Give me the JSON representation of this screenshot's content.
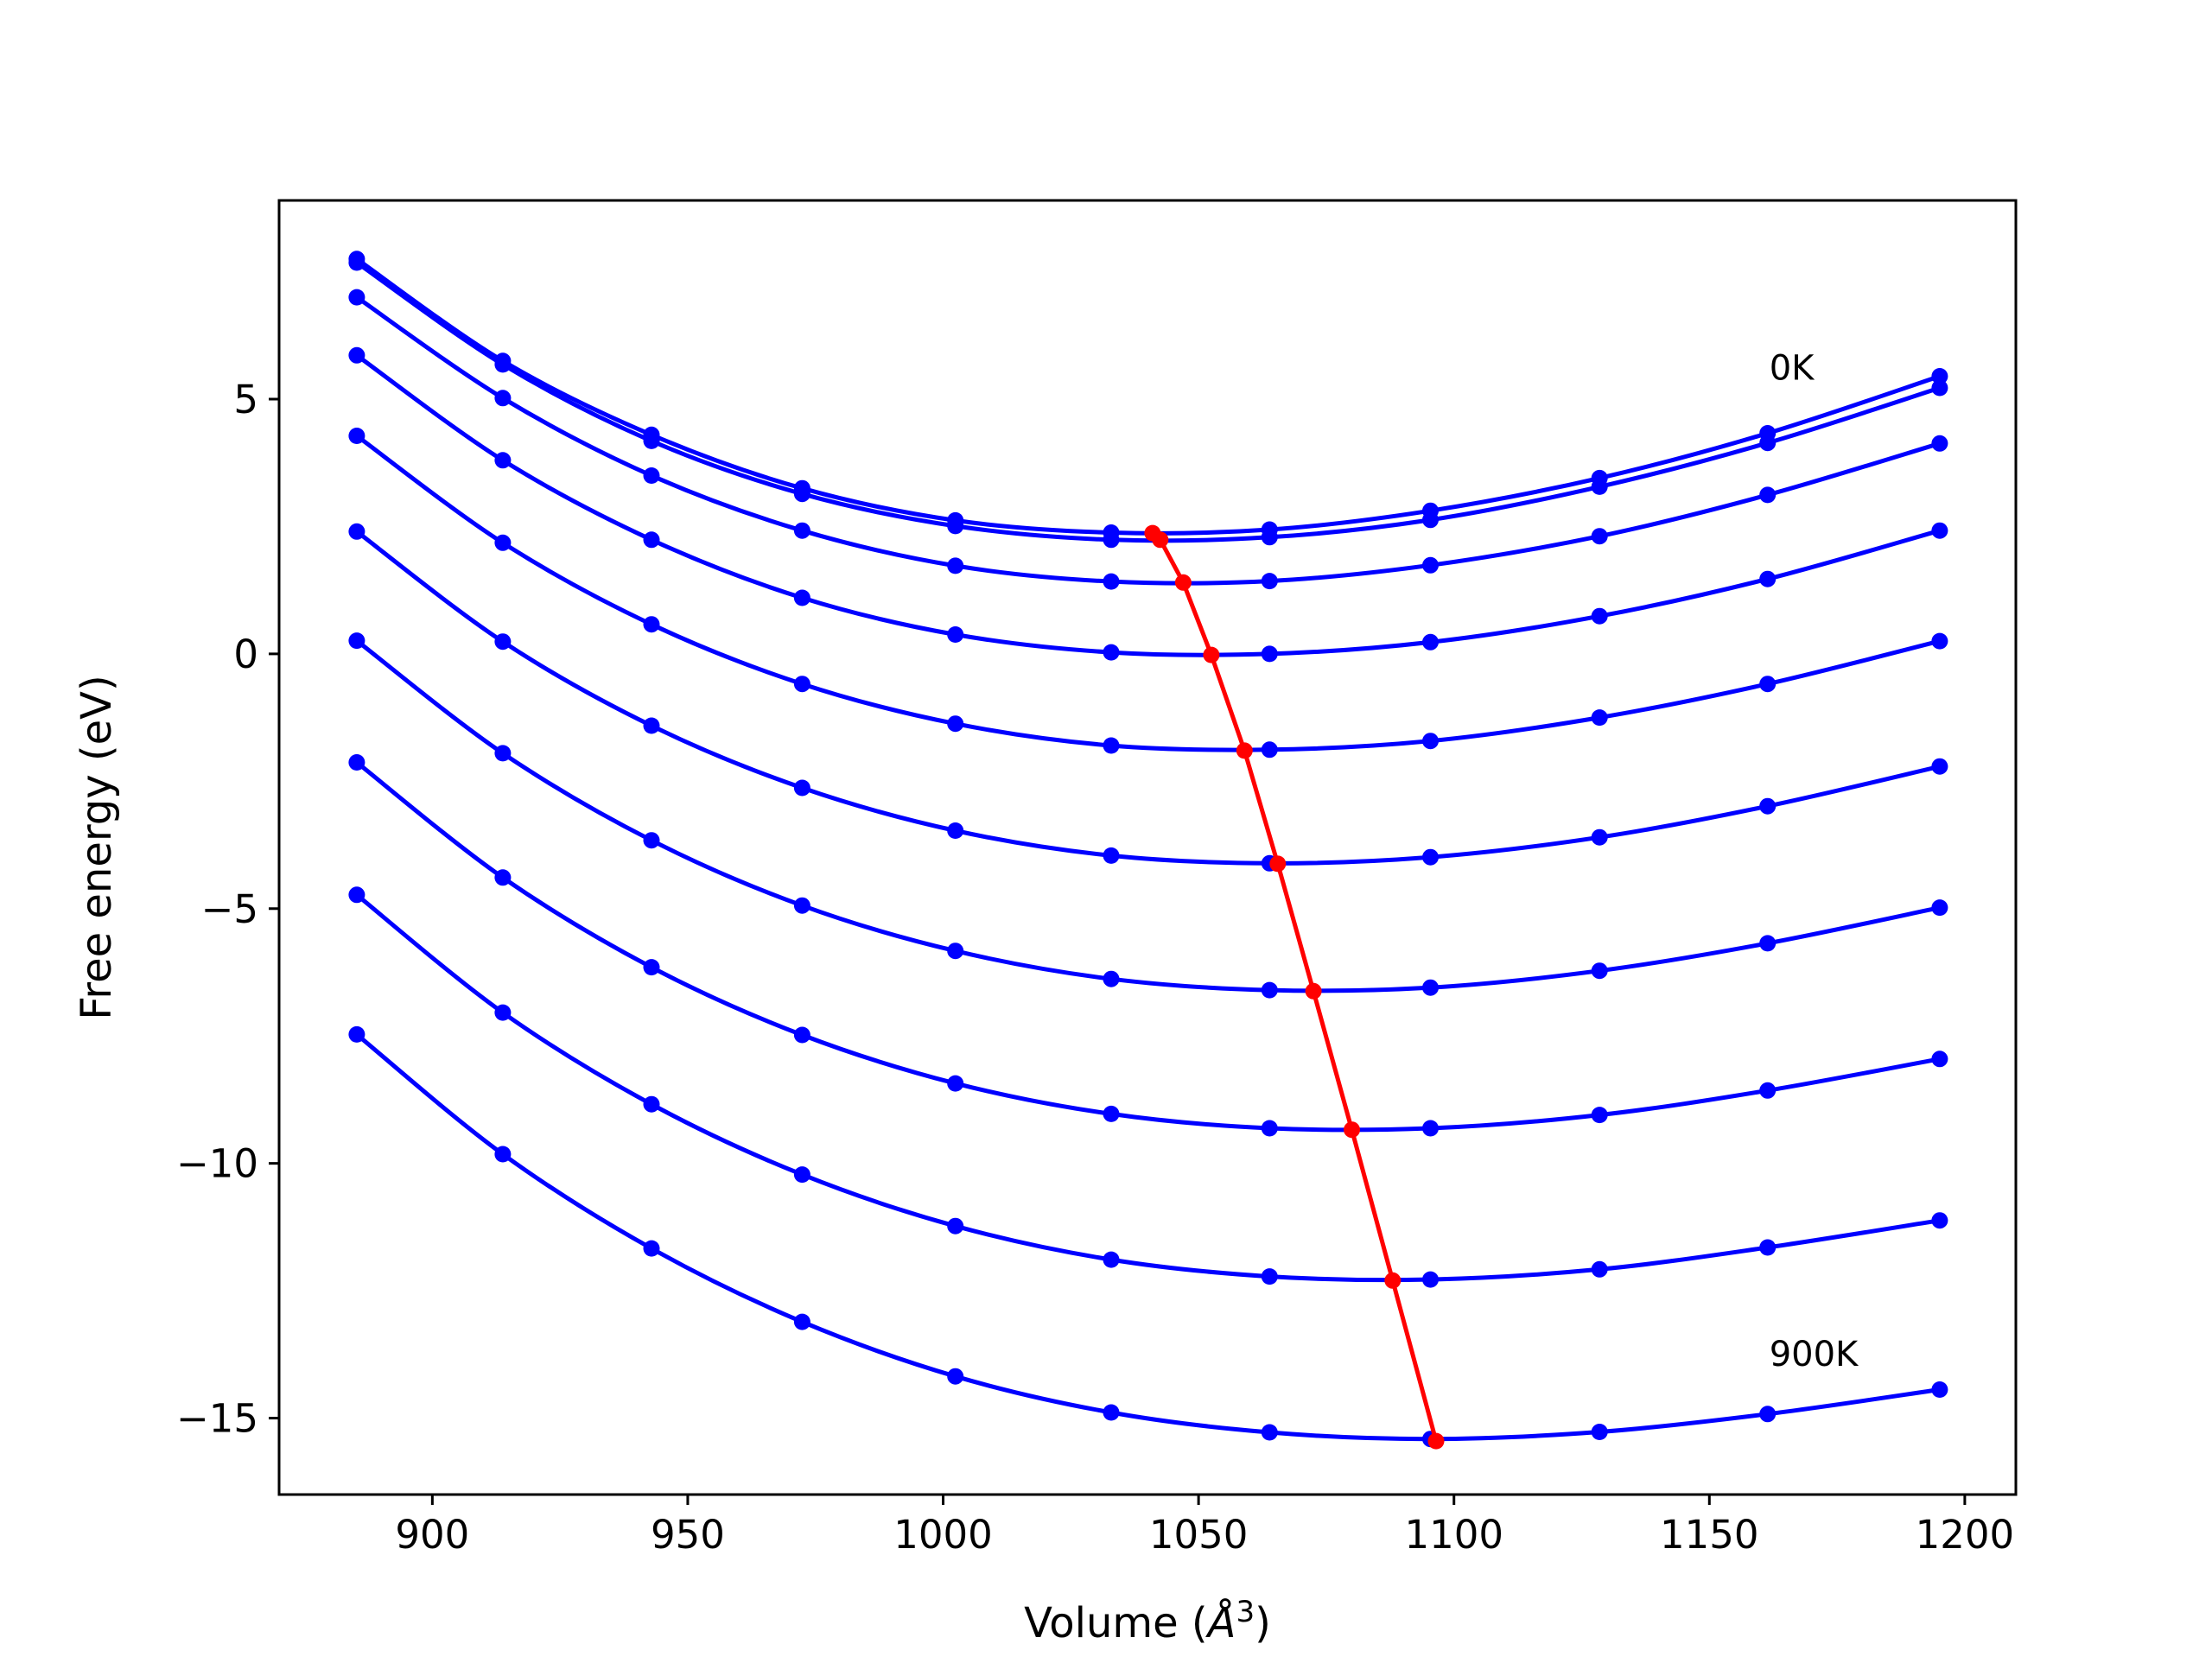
{
  "chart_data": {
    "type": "line",
    "title": "",
    "xlabel": "Volume (Å³)",
    "xlabel_main": "Volume (",
    "xlabel_symbol": "Å",
    "xlabel_sup": "3",
    "xlabel_close": ")",
    "ylabel": "Free energy (eV)",
    "xlim": [
      870,
      1210
    ],
    "ylim": [
      -16.5,
      8.9
    ],
    "xticks": [
      900,
      950,
      1000,
      1050,
      1100,
      1150,
      1200
    ],
    "xtick_labels": [
      "900",
      "950",
      "1000",
      "1050",
      "1100",
      "1150",
      "1200"
    ],
    "yticks": [
      -15,
      -10,
      -5,
      0,
      5
    ],
    "ytick_labels": [
      "−15",
      "−10",
      "−5",
      "0",
      "5"
    ],
    "grid": false,
    "x": [
      885.2,
      913.8,
      942.9,
      972.4,
      1002.4,
      1032.9,
      1063.9,
      1095.4,
      1128.5,
      1161.4,
      1195.1
    ],
    "series": [
      {
        "temperature_label": "0K",
        "color": "#0000ff",
        "values": [
          7.75,
          5.75,
          4.3,
          3.25,
          2.62,
          2.38,
          2.44,
          2.81,
          3.45,
          4.33,
          5.45
        ]
      },
      {
        "color": "#0000ff",
        "values": [
          7.68,
          5.68,
          4.18,
          3.14,
          2.51,
          2.24,
          2.29,
          2.63,
          3.28,
          4.14,
          5.22
        ]
      },
      {
        "color": "#0000ff",
        "values": [
          7.0,
          5.02,
          3.5,
          2.42,
          1.73,
          1.42,
          1.43,
          1.74,
          2.31,
          3.12,
          4.13
        ]
      },
      {
        "color": "#0000ff",
        "values": [
          5.86,
          3.8,
          2.24,
          1.1,
          0.38,
          0.03,
          0.0,
          0.23,
          0.74,
          1.47,
          2.42
        ]
      },
      {
        "color": "#0000ff",
        "values": [
          4.28,
          2.18,
          0.58,
          -0.59,
          -1.37,
          -1.8,
          -1.88,
          -1.71,
          -1.25,
          -0.59,
          0.25
        ]
      },
      {
        "color": "#0000ff",
        "values": [
          2.4,
          0.24,
          -1.41,
          -2.63,
          -3.47,
          -3.96,
          -4.11,
          -3.99,
          -3.6,
          -2.99,
          -2.21
        ]
      },
      {
        "color": "#0000ff",
        "values": [
          0.26,
          -1.95,
          -3.66,
          -4.94,
          -5.83,
          -6.38,
          -6.6,
          -6.55,
          -6.22,
          -5.68,
          -4.98
        ]
      },
      {
        "color": "#0000ff",
        "values": [
          -2.13,
          -4.39,
          -6.15,
          -7.48,
          -8.43,
          -9.03,
          -9.31,
          -9.31,
          -9.05,
          -8.57,
          -7.95
        ]
      },
      {
        "color": "#0000ff",
        "values": [
          -4.73,
          -7.04,
          -8.84,
          -10.22,
          -11.23,
          -11.89,
          -12.22,
          -12.28,
          -12.08,
          -11.65,
          -11.12
        ]
      },
      {
        "temperature_label": "900K",
        "color": "#0000ff",
        "values": [
          -7.47,
          -9.82,
          -11.67,
          -13.11,
          -14.18,
          -14.89,
          -15.28,
          -15.41,
          -15.27,
          -14.92,
          -14.44
        ]
      }
    ],
    "minima_curve": {
      "color": "#ff0000",
      "x": [
        1041.0,
        1042.5,
        1047.0,
        1052.5,
        1059.0,
        1065.5,
        1072.5,
        1080.0,
        1088.0,
        1096.5
      ],
      "y": [
        2.37,
        2.24,
        1.4,
        -0.02,
        -1.9,
        -4.12,
        -6.62,
        -9.34,
        -12.3,
        -15.45
      ]
    }
  }
}
